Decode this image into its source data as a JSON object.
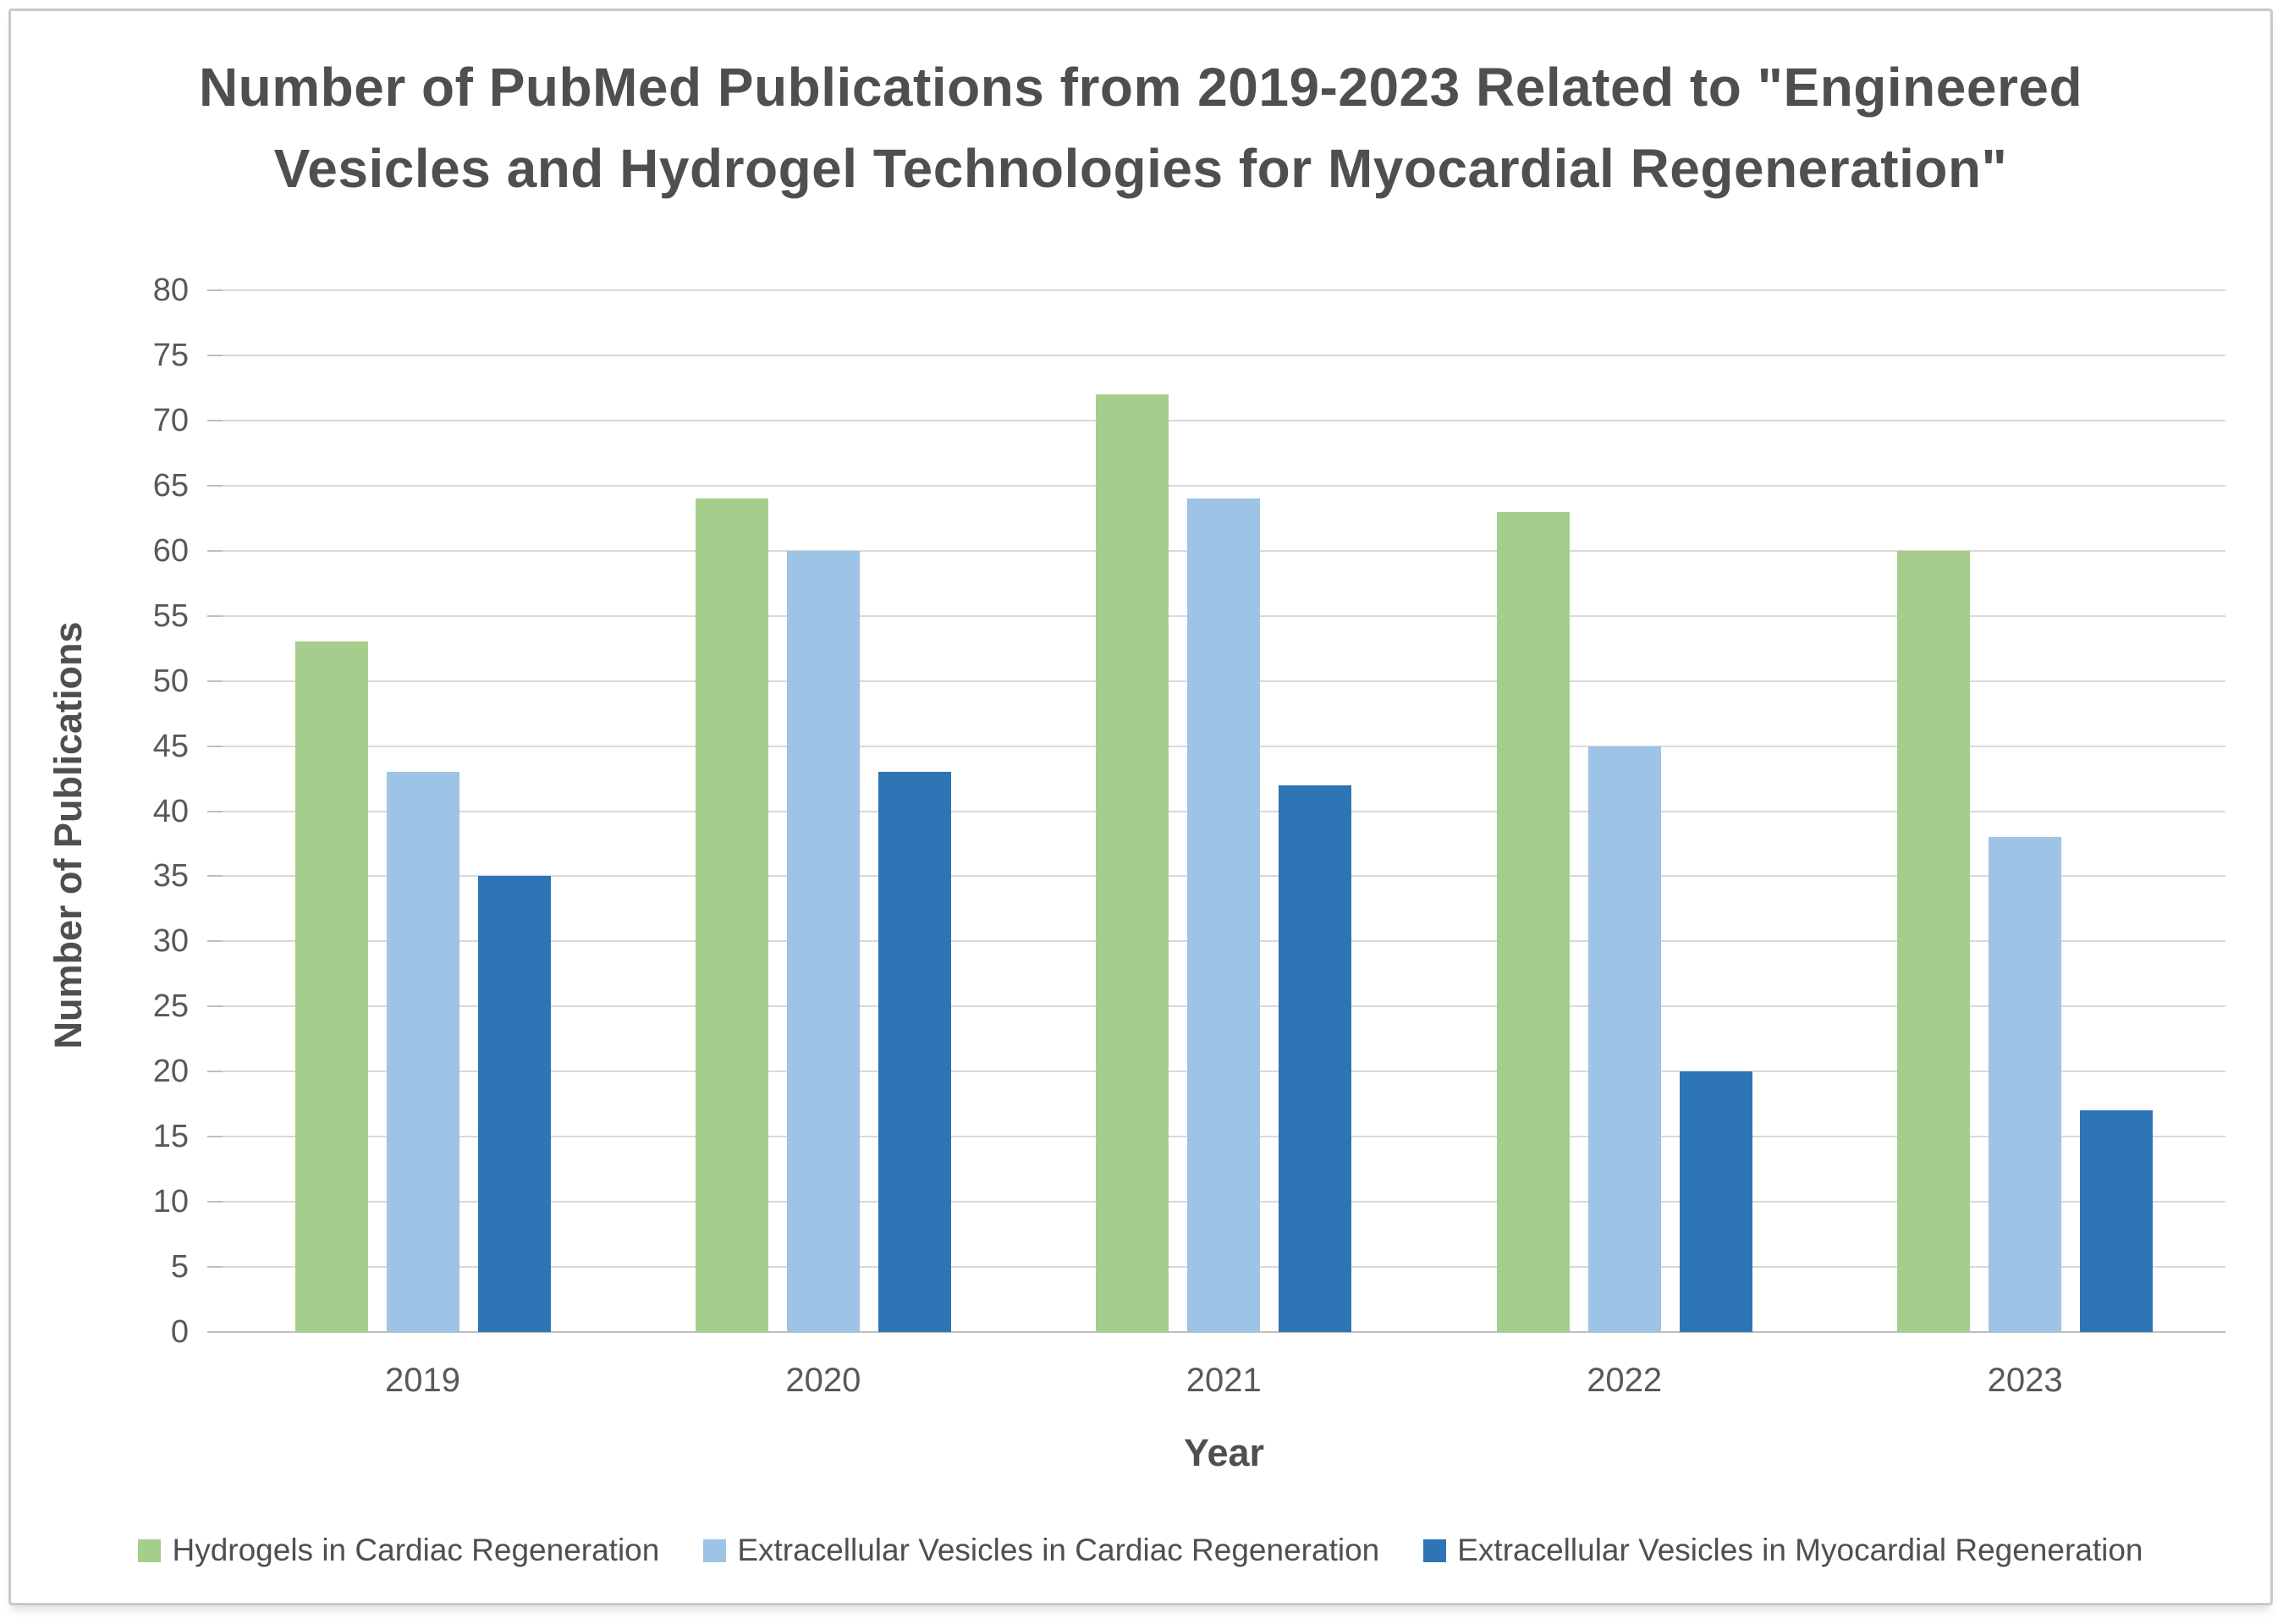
{
  "chart_data": {
    "type": "bar",
    "title": "Number of PubMed Publications from 2019-2023 Related to \"Engineered Vesicles and Hydrogel Technologies for Myocardial Regeneration\"",
    "title_lines": [
      "Number of PubMed Publications from 2019-2023 Related to \"Engineered",
      "Vesicles and Hydrogel Technologies for Myocardial Regeneration\""
    ],
    "xlabel": "Year",
    "ylabel": "Number of Publications",
    "categories": [
      "2019",
      "2020",
      "2021",
      "2022",
      "2023"
    ],
    "series": [
      {
        "name": "Hydrogels in Cardiac Regeneration",
        "color": "#A5CE8C",
        "values": [
          53,
          64,
          72,
          63,
          60
        ]
      },
      {
        "name": "Extracellular Vesicles in Cardiac Regeneration",
        "color": "#9DC3E6",
        "values": [
          43,
          60,
          64,
          45,
          38
        ]
      },
      {
        "name": "Extracellular Vesicles in Myocardial Regeneration",
        "color": "#2E75B6",
        "values": [
          35,
          43,
          42,
          20,
          17
        ]
      }
    ],
    "ylim": [
      0,
      80
    ],
    "ytick_step": 5,
    "grid": true,
    "legend_position": "bottom",
    "colors": {
      "text": "#4f4f4f",
      "tick_text": "#595959",
      "gridline": "#d9d9d9",
      "axis_line": "#bfbfbf"
    }
  }
}
